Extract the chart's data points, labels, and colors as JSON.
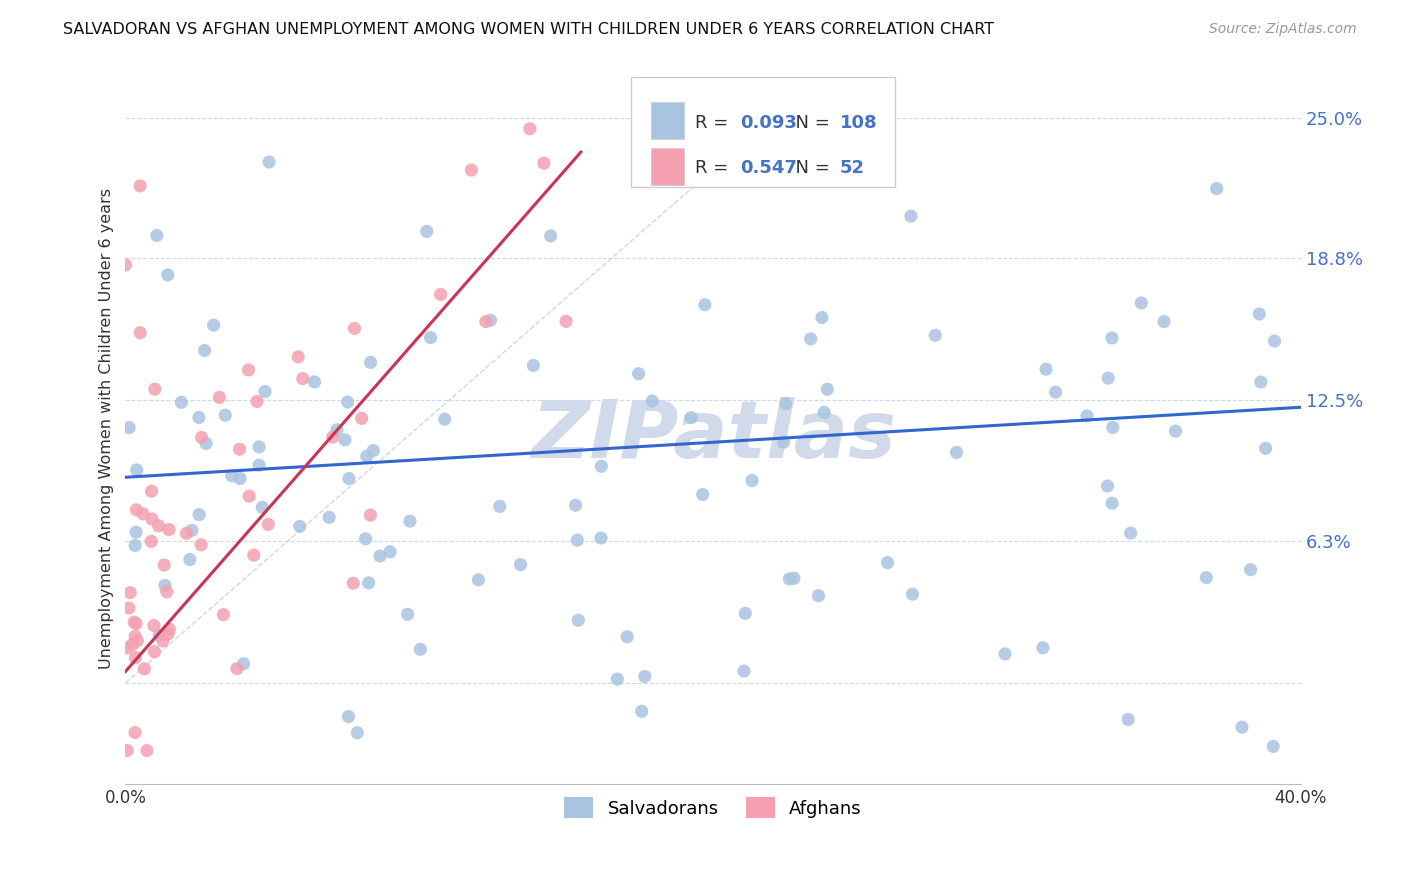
{
  "title": "SALVADORAN VS AFGHAN UNEMPLOYMENT AMONG WOMEN WITH CHILDREN UNDER 6 YEARS CORRELATION CHART",
  "source": "Source: ZipAtlas.com",
  "ylabel": "Unemployment Among Women with Children Under 6 years",
  "ytick_vals": [
    0.0,
    0.063,
    0.125,
    0.188,
    0.25
  ],
  "ytick_labels": [
    "",
    "6.3%",
    "12.5%",
    "18.8%",
    "25.0%"
  ],
  "xrange": [
    0.0,
    0.4
  ],
  "yrange": [
    -0.045,
    0.27
  ],
  "legend_R_salvadoran": "0.093",
  "legend_N_salvadoran": "108",
  "legend_R_afghan": "0.547",
  "legend_N_afghan": "52",
  "salvadoran_color": "#a8c4e0",
  "afghan_color": "#f4a0b0",
  "trendline_salvadoran_color": "#3366cc",
  "trendline_afghan_color": "#cc3355",
  "diagonal_color": "#cccccc",
  "watermark_text": "ZIPatlas",
  "watermark_color": "#d0daea",
  "background_color": "#ffffff",
  "grid_color": "#d0d8e8",
  "tick_color": "#4472c4",
  "sal_trend_x": [
    0.0,
    0.4
  ],
  "sal_trend_y": [
    0.091,
    0.122
  ],
  "afg_trend_x": [
    0.0,
    0.155
  ],
  "afg_trend_y": [
    0.005,
    0.235
  ]
}
